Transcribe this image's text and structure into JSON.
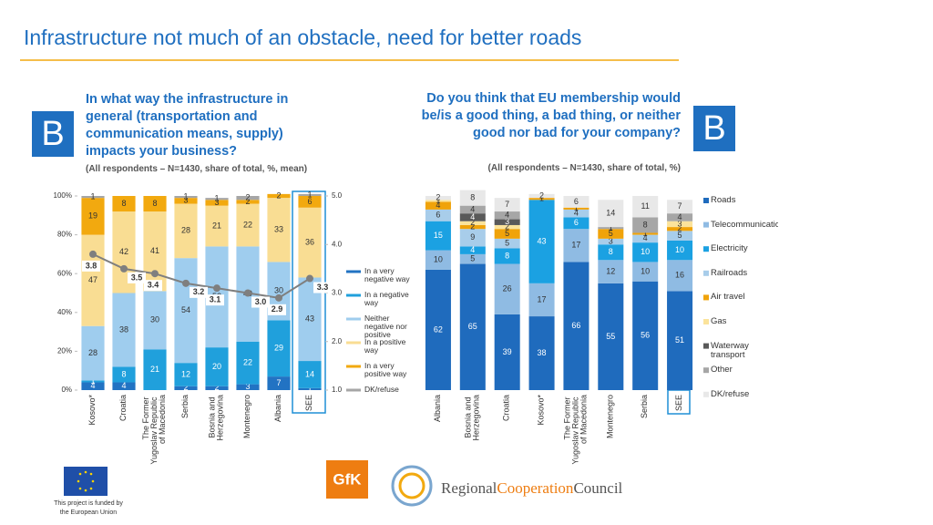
{
  "header": {
    "title": "Infrastructure not much of an obstacle, need for better roads"
  },
  "left": {
    "badge": "B",
    "question": "In what way the infrastructure in general (transportation and communication means, supply) impacts your business?",
    "note": "(All respondents – N=1430, share of total, %, mean)"
  },
  "right": {
    "badge": "B",
    "question": "Do you think that EU membership would be/is a good thing, a bad thing, or neither good nor bad for your company?",
    "note": "(All respondents – N=1430, share of total, %)"
  },
  "chart_data": [
    {
      "type": "bar",
      "stacked": true,
      "categories": [
        "Kosovo*",
        "Croatia",
        "The Former Yugoslav Republic of Macedonia",
        "Serbia",
        "Bosnia and Herzegovina",
        "Montenegro",
        "Albania",
        "SEE"
      ],
      "ylim": [
        0,
        100
      ],
      "yticks": [
        {
          "value": 0,
          "label": "0%"
        },
        {
          "value": 20,
          "label": "20%"
        },
        {
          "value": 40,
          "label": "40%"
        },
        {
          "value": 60,
          "label": "60%"
        },
        {
          "value": 80,
          "label": "80%"
        },
        {
          "value": 100,
          "label": "100%"
        }
      ],
      "y2lim": [
        1,
        5
      ],
      "y2ticks": [
        {
          "value": 1,
          "label": "1.0"
        },
        {
          "value": 2,
          "label": "2.0"
        },
        {
          "value": 3,
          "label": "3.0"
        },
        {
          "value": 4,
          "label": "4.0"
        },
        {
          "value": 5,
          "label": "5.0"
        }
      ],
      "series": [
        {
          "name": "In a very negative way",
          "color": "#2273c3",
          "values": [
            4,
            4,
            0,
            2,
            2,
            3,
            7,
            1
          ]
        },
        {
          "name": "In a negative way",
          "color": "#20a0dc",
          "values": [
            1,
            8,
            21,
            12,
            20,
            22,
            29,
            14
          ]
        },
        {
          "name": "Neither negative nor positive",
          "color": "#9fcdee",
          "values": [
            28,
            38,
            30,
            54,
            52,
            49,
            30,
            43
          ]
        },
        {
          "name": "In a positive way",
          "color": "#f9dd93",
          "values": [
            47,
            42,
            41,
            28,
            21,
            22,
            33,
            36
          ]
        },
        {
          "name": "In a very positive way",
          "color": "#f2a90f",
          "values": [
            19,
            8,
            8,
            3,
            3,
            2,
            2,
            6
          ]
        },
        {
          "name": "DK/refuse",
          "color": "#a6a6a6",
          "values": [
            1,
            null,
            null,
            1,
            1,
            2,
            null,
            1
          ]
        },
        {
          "type": "line",
          "axis": "y2",
          "color": "#7f7f7f",
          "values": [
            3.8,
            3.5,
            3.4,
            3.2,
            3.1,
            3.0,
            2.9,
            3.3
          ],
          "value_labels": [
            "3.8",
            "3.5",
            "3.4",
            "3.2",
            "3.1",
            "3.0",
            "2.9",
            "3.3"
          ]
        }
      ]
    },
    {
      "type": "bar",
      "stacked": true,
      "categories": [
        "Albania",
        "Bosnia and Herzegovina",
        "Croatia",
        "Kosovo*",
        "The Former Yugoslav Republic of Macedonia",
        "Montenegro",
        "Serbia",
        "SEE"
      ],
      "ylim": [
        0,
        100
      ],
      "series": [
        {
          "name": "Roads",
          "color": "#1f6bbd",
          "values": [
            62,
            65,
            39,
            38,
            66,
            55,
            56,
            51
          ]
        },
        {
          "name": "Telecommunications",
          "color": "#8fbbe3",
          "values": [
            10,
            5,
            26,
            17,
            17,
            12,
            10,
            16
          ]
        },
        {
          "name": "Electricity",
          "color": "#1ba1e2",
          "values": [
            15,
            4,
            8,
            43,
            6,
            8,
            10,
            10
          ]
        },
        {
          "name": "Railroads",
          "color": "#a8cdea",
          "values": [
            6,
            9,
            5,
            null,
            4,
            3,
            4,
            5
          ]
        },
        {
          "name": "Air travel",
          "color": "#f0a30a",
          "values": [
            4,
            2,
            5,
            1,
            1,
            5,
            1,
            2
          ]
        },
        {
          "name": "Gas",
          "color": "#fbe39b",
          "values": [
            1,
            2,
            2,
            null,
            null,
            null,
            null,
            3
          ]
        },
        {
          "name": "Waterway transport",
          "color": "#595959",
          "values": [
            null,
            4,
            3,
            null,
            null,
            null,
            null,
            null
          ]
        },
        {
          "name": "Other",
          "color": "#a6a6a6",
          "values": [
            null,
            4,
            4,
            null,
            null,
            1,
            8,
            4
          ]
        },
        {
          "name": "DK/refuse",
          "color": "#e8e8e8",
          "values": [
            2,
            8,
            7,
            2,
            6,
            14,
            11,
            7
          ]
        }
      ]
    }
  ],
  "footer": {
    "funding": [
      "This project is funded by",
      "the European Union"
    ],
    "gfk": "GfK",
    "rcc": [
      "Regional",
      "Cooperation",
      "Council"
    ]
  }
}
